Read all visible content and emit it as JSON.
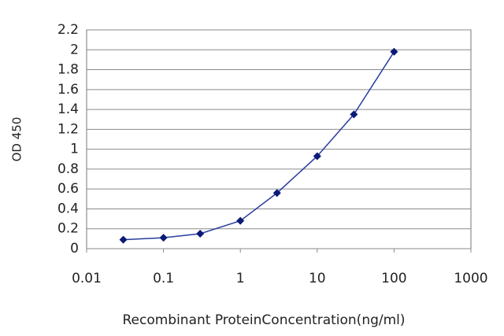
{
  "chart_data": {
    "type": "line",
    "ylabel": "OD 450",
    "xlabel": "Recombinant ProteinConcentration(ng/ml)",
    "xscale": "log",
    "grid": true,
    "xlim": [
      0.01,
      1000
    ],
    "xticks": [
      0.01,
      0.1,
      1,
      10,
      100,
      1000
    ],
    "ylim": [
      0,
      2.2
    ],
    "yticks": [
      0,
      0.2,
      0.4,
      0.6,
      0.8,
      1,
      1.2,
      1.4,
      1.6,
      1.8,
      2,
      2.2
    ],
    "x": [
      0.03,
      0.1,
      0.3,
      1,
      3,
      10,
      30,
      100
    ],
    "series": [
      {
        "color": "#2a3d9e",
        "marker_color": "#0a1a78",
        "values": [
          0.09,
          0.11,
          0.15,
          0.28,
          0.56,
          0.93,
          1.35,
          1.98
        ]
      }
    ]
  }
}
